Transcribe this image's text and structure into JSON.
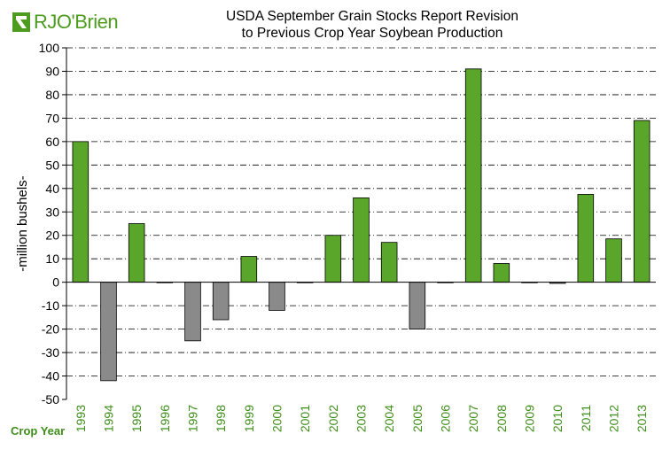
{
  "logo": {
    "text": "RJO'Brien",
    "color": "#4d9c1f"
  },
  "colors": {
    "positive": "#5aa62a",
    "negative": "#8a8a8a",
    "axis": "#000000",
    "grid": "#000000",
    "tick_x": "#3e8e1a"
  },
  "chart_data": {
    "type": "bar",
    "title": "USDA September Grain Stocks Report Revision to Previous Crop Year Soybean Production",
    "title_lines": [
      "USDA September Grain Stocks Report Revision",
      "to Previous Crop Year Soybean Production"
    ],
    "xlabel": "Crop Year",
    "ylabel": "-million bushels-",
    "ylim": [
      -50,
      100
    ],
    "ystep": 10,
    "grid": "horizontal dashed",
    "categories": [
      "1993",
      "1994",
      "1995",
      "1996",
      "1997",
      "1998",
      "1999",
      "2000",
      "2001",
      "2002",
      "2003",
      "2004",
      "2005",
      "2006",
      "2007",
      "2008",
      "2009",
      "2010",
      "2011",
      "2012",
      "2013"
    ],
    "values": [
      60,
      -42,
      25,
      0,
      -25,
      -16,
      11,
      -12,
      0,
      20,
      36,
      17,
      -20,
      0,
      91,
      8,
      0,
      -0.5,
      37.5,
      18.5,
      69
    ]
  }
}
